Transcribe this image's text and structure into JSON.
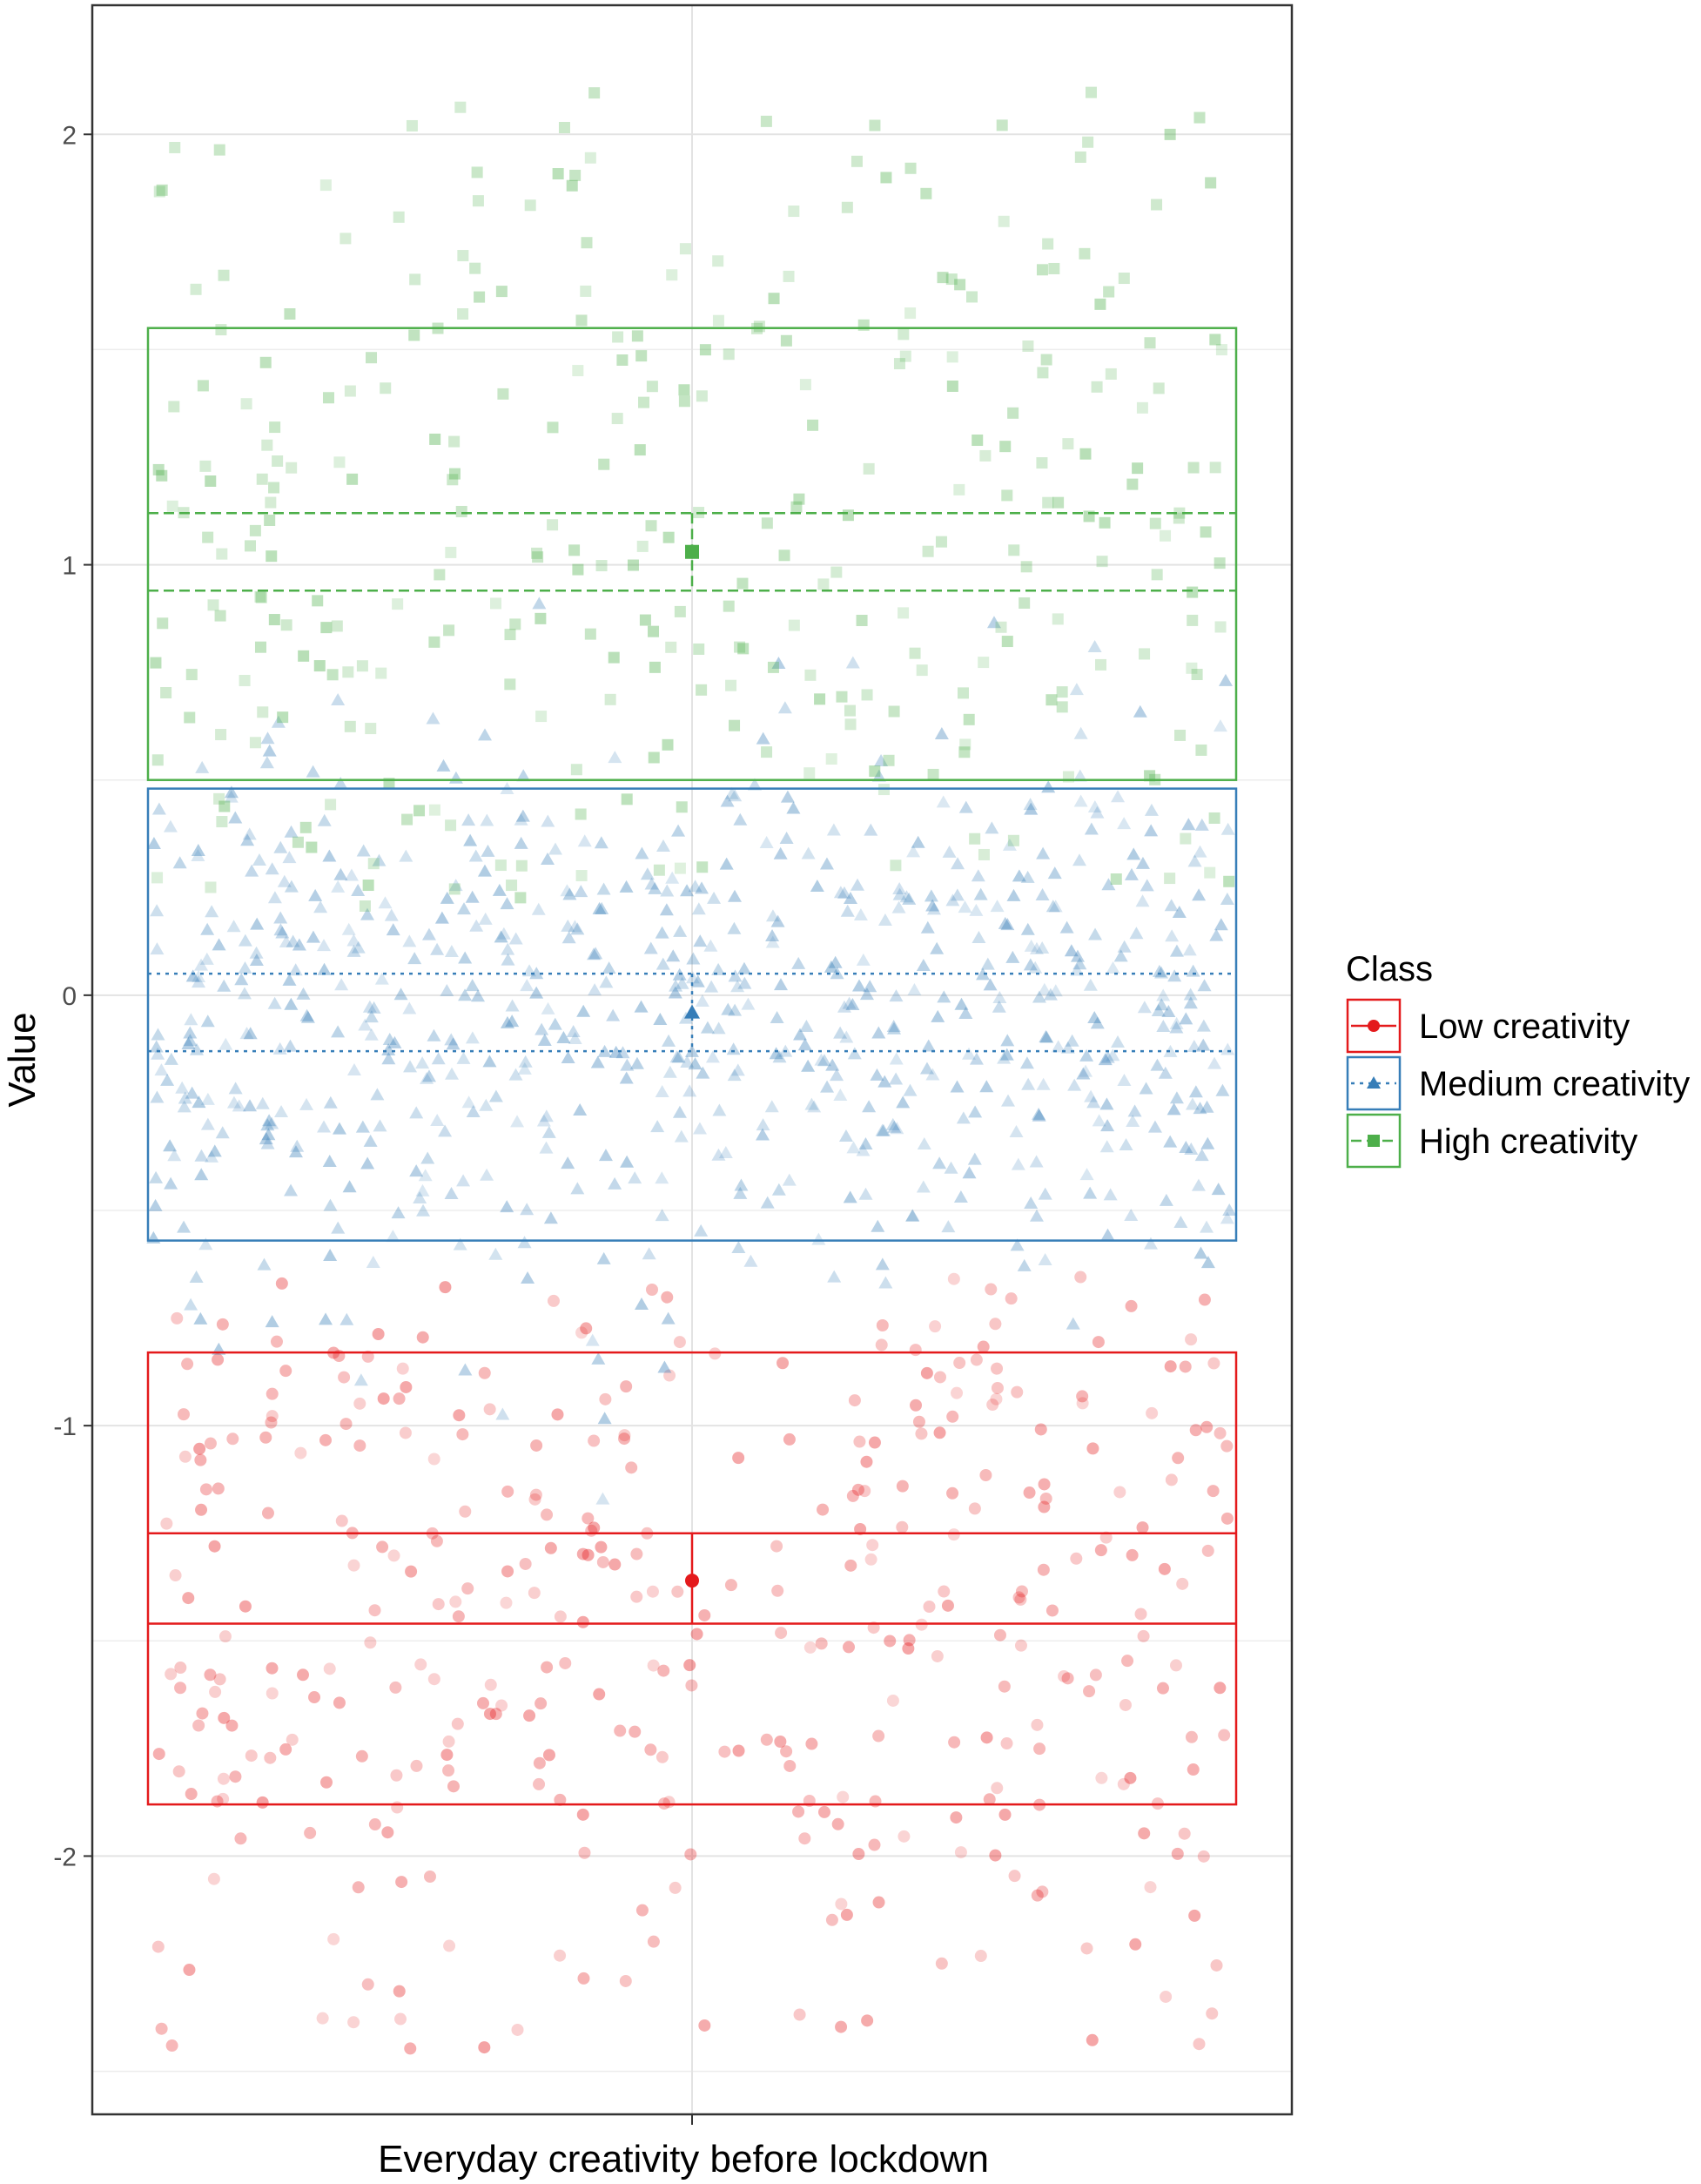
{
  "chart_data": {
    "type": "scatter",
    "title": "",
    "xlabel": "Everyday creativity before lockdown",
    "ylabel": "Value",
    "ylim": [
      -2.6,
      2.3
    ],
    "y_ticks": [
      "-2",
      "-1",
      "0",
      "1",
      "2"
    ],
    "y_tick_values": [
      -2,
      -1,
      0,
      1,
      2
    ],
    "grid": true,
    "legend": {
      "title": "Class",
      "position": "right"
    },
    "series": [
      {
        "name": "Low creativity",
        "color": "#e41a1c",
        "marker": "circle",
        "line_style": "solid",
        "mean": -1.36,
        "ci": [
          -1.46,
          -1.25
        ],
        "band": [
          -1.88,
          -0.83
        ],
        "range": [
          -2.45,
          -0.65
        ],
        "n_points": 380
      },
      {
        "name": "Medium creativity",
        "color": "#377eb8",
        "marker": "triangle",
        "line_style": "dotted",
        "mean": -0.04,
        "ci": [
          -0.13,
          0.05
        ],
        "band": [
          -0.57,
          0.48
        ],
        "range": [
          -1.2,
          1.0
        ],
        "n_points": 720
      },
      {
        "name": "High creativity",
        "color": "#4daf4a",
        "marker": "square",
        "line_style": "dashed",
        "mean": 1.03,
        "ci": [
          0.94,
          1.12
        ],
        "band": [
          0.5,
          1.55
        ],
        "range": [
          0.2,
          2.1
        ],
        "n_points": 330
      }
    ]
  }
}
